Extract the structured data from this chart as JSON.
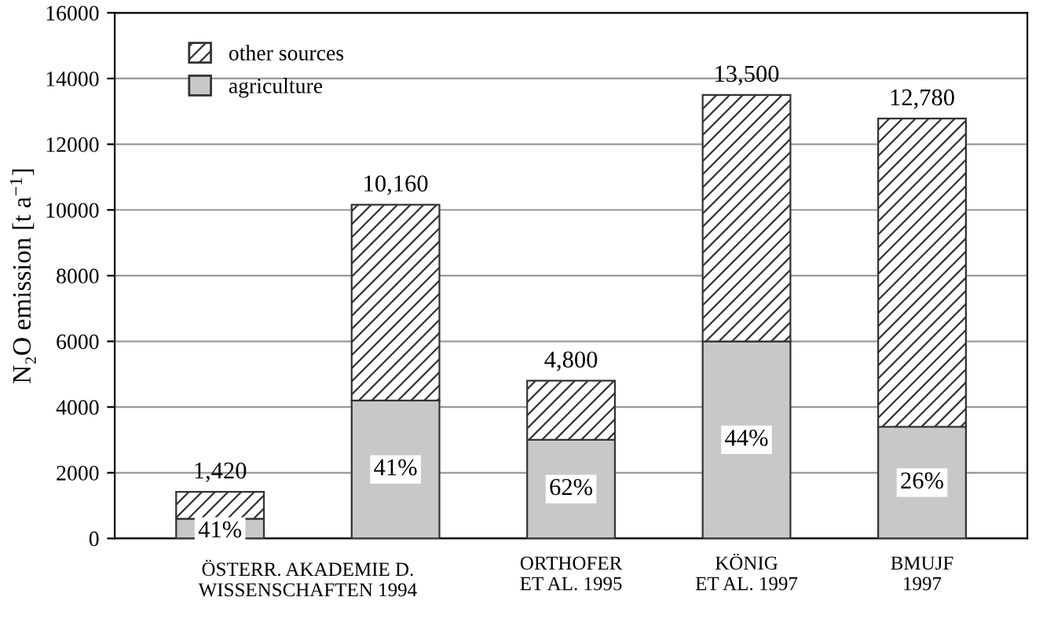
{
  "chart_data": {
    "type": "bar",
    "stacked": true,
    "categories": [
      null,
      null,
      "ORTHOFER\nET AL. 1995",
      "KÖNIG\nET AL. 1997",
      "BMUJF\n1997"
    ],
    "ylabel": "N₂O emission [t a$^{−1}$]",
    "series": [
      {
        "name": "agriculture",
        "color": "#c8c8c8",
        "values": [
          600,
          4200,
          3000,
          6000,
          3400
        ]
      },
      {
        "name": "other sources",
        "color": "#333333",
        "values": [
          820,
          5960,
          1800,
          7500,
          9380
        ]
      }
    ],
    "totals": [
      "1,420",
      "10,160",
      "4,800",
      "13,500",
      "12,780"
    ],
    "annotations": [
      "ÖSTERR. AKADEMIE D.\nWISSENSCHAFTEN 1994",
      "41%",
      "41%",
      "62%",
      "44%",
      "26%"
    ],
    "ylim": [
      0,
      16000
    ],
    "yticks": [
      0,
      2000,
      4000,
      6000,
      8000,
      10000,
      12000,
      14000,
      16000
    ],
    "grid": "y",
    "legend": "top left"
  }
}
